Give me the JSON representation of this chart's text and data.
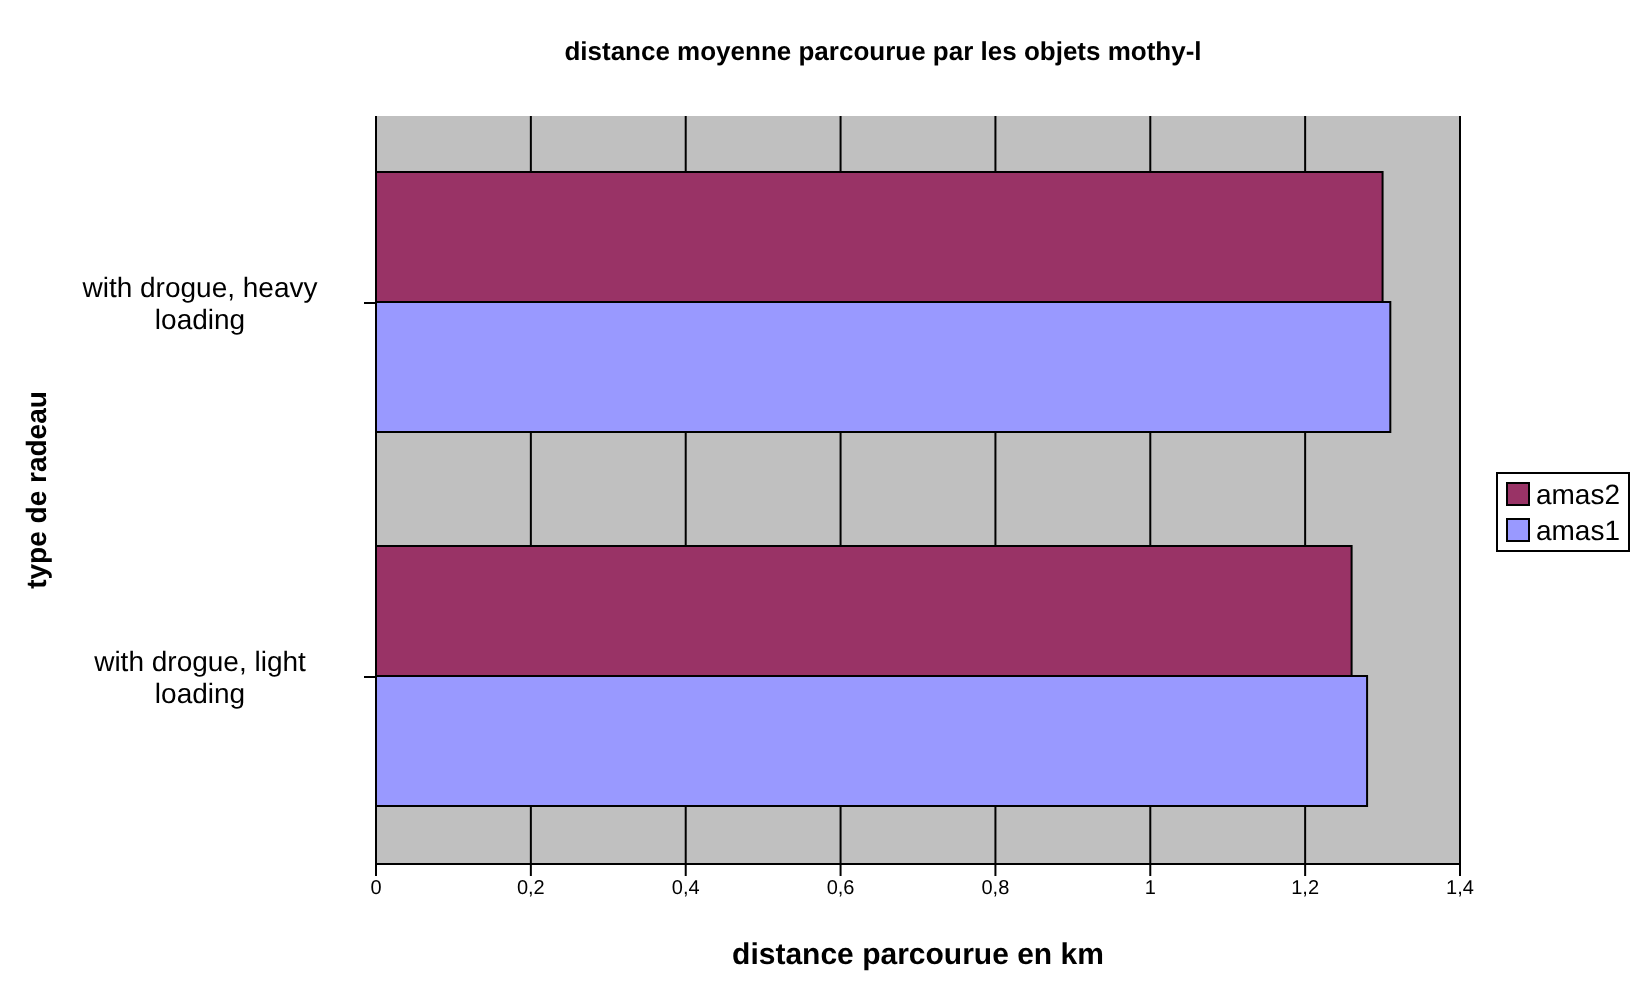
{
  "chart_data": {
    "type": "bar",
    "orientation": "horizontal",
    "title": "distance moyenne parcourue par les objets mothy-l",
    "xlabel": "distance parcourue en km",
    "ylabel": "type de radeau",
    "categories": [
      "with drogue, heavy loading",
      "with drogue, light loading"
    ],
    "series": [
      {
        "name": "amas2",
        "color": "#993366",
        "values": [
          1.3,
          1.26
        ]
      },
      {
        "name": "amas1",
        "color": "#9999ff",
        "values": [
          1.31,
          1.28
        ]
      }
    ],
    "xlim": [
      0,
      1.4
    ],
    "xticks": [
      0,
      {
        "value": 0.2,
        "label": "0,2"
      },
      {
        "value": 0.4,
        "label": "0,4"
      },
      {
        "value": 0.6,
        "label": "0,6"
      },
      {
        "value": 0.8,
        "label": "0,8"
      },
      1,
      {
        "value": 1.2,
        "label": "1,2"
      },
      {
        "value": 1.4,
        "label": "1,4"
      }
    ],
    "grid": "x",
    "legend": "right"
  }
}
